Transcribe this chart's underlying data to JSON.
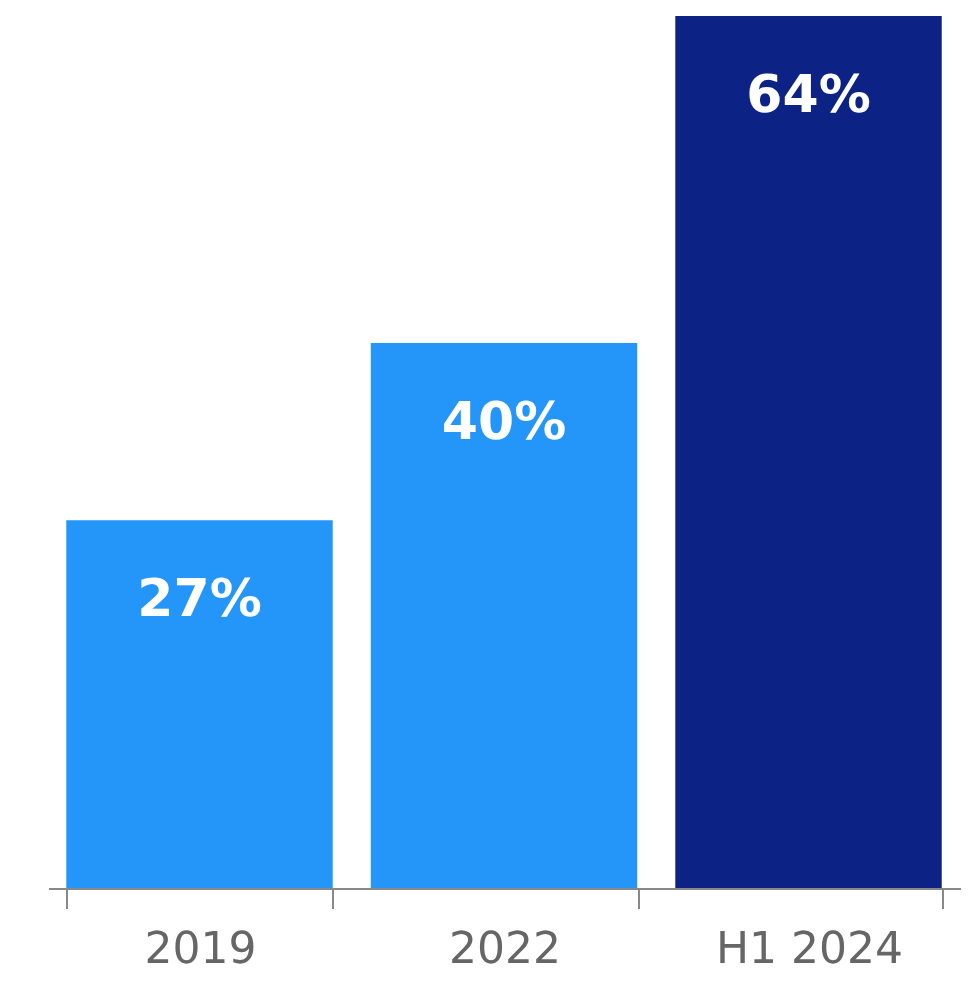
{
  "chart_data": {
    "type": "bar",
    "categories": [
      "2019",
      "2022",
      "H1 2024"
    ],
    "values": [
      27,
      40,
      64
    ],
    "colors": [
      "#2496f9",
      "#2496f9",
      "#0d2285"
    ],
    "value_labels": [
      "27%",
      "40%",
      "64%"
    ]
  }
}
